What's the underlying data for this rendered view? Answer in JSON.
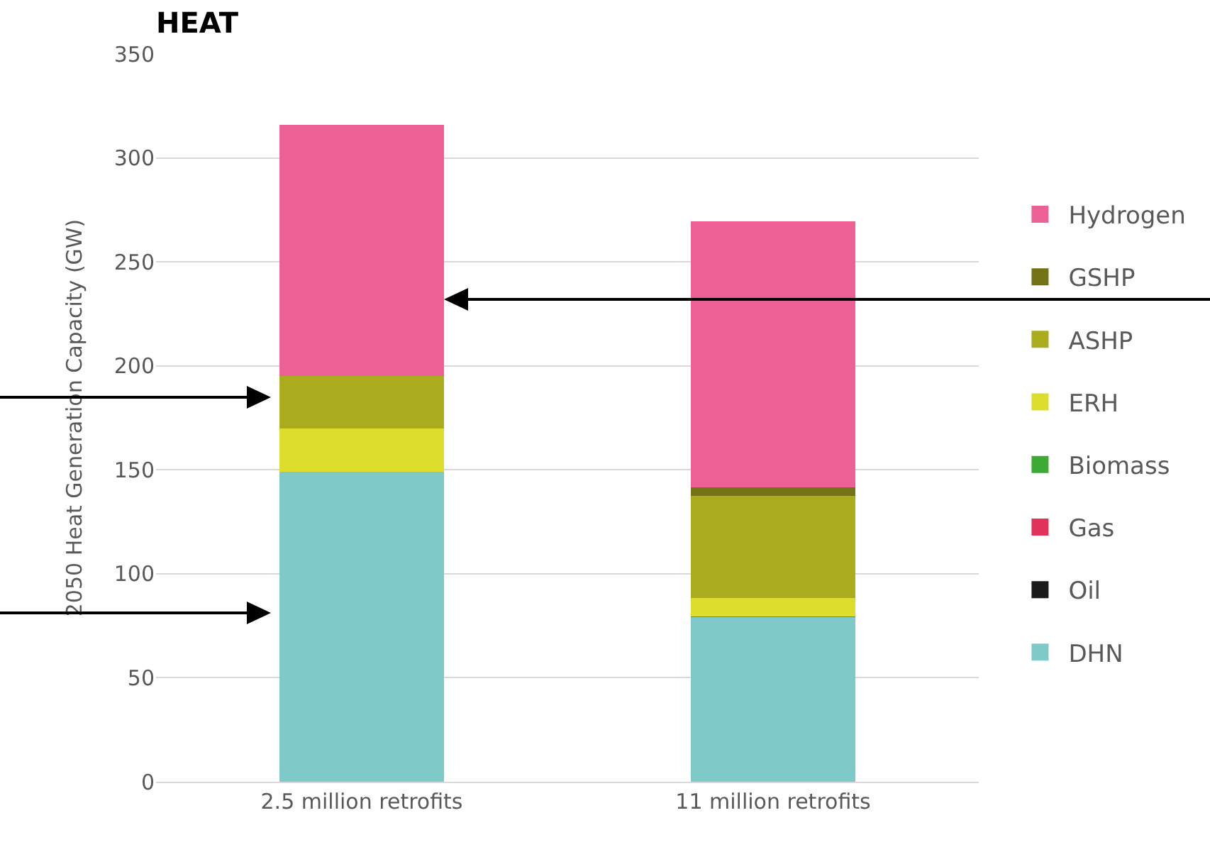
{
  "chart_data": {
    "type": "bar",
    "title": "HEAT",
    "ylabel": "2050 Heat Generation Capacity (GW)",
    "categories": [
      "2.5 million retrofits",
      "11 million retrofits"
    ],
    "stacked": true,
    "series": [
      {
        "name": "DHN",
        "color": "#7fc9c8",
        "values": [
          149,
          79
        ]
      },
      {
        "name": "Oil",
        "color": "#1a1a1a",
        "values": [
          0,
          0
        ]
      },
      {
        "name": "Gas",
        "color": "#e0325a",
        "values": [
          0,
          0
        ]
      },
      {
        "name": "Biomass",
        "color": "#3daa35",
        "values": [
          0,
          0.5
        ]
      },
      {
        "name": "ERH",
        "color": "#dddd2e",
        "values": [
          21,
          9
        ]
      },
      {
        "name": "ASHP",
        "color": "#abab1e",
        "values": [
          25,
          49
        ]
      },
      {
        "name": "GSHP",
        "color": "#737316",
        "values": [
          0,
          4
        ]
      },
      {
        "name": "Hydrogen",
        "color": "#ec6096",
        "values": [
          121,
          128
        ]
      }
    ],
    "ylim": [
      0,
      350
    ],
    "yticks": [
      0,
      50,
      100,
      150,
      200,
      250,
      300,
      350
    ],
    "grid": "y",
    "legend": "right"
  }
}
